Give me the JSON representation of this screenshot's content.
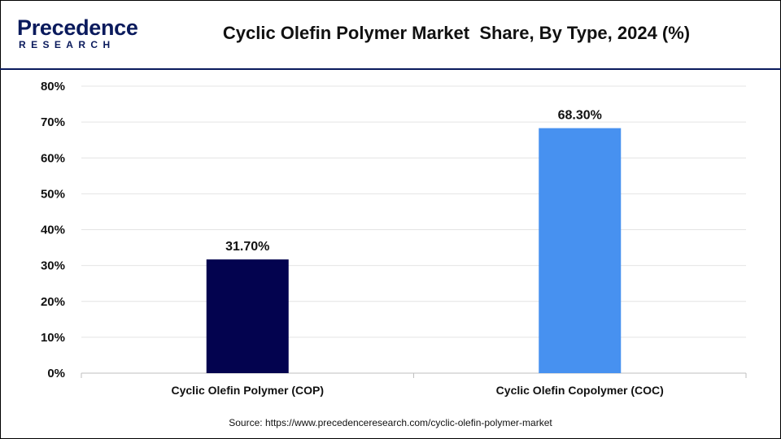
{
  "header": {
    "logo_word": "Precedence",
    "logo_sub": "RESEARCH",
    "brand_color": "#0a1a5c"
  },
  "chart_data": {
    "type": "bar",
    "title": "Cyclic Olefin Polymer Market  Share, By Type, 2024 (%)",
    "categories": [
      "Cyclic Olefin Polymer (COP)",
      "Cyclic Olefin Copolymer (COC)"
    ],
    "values": [
      31.7,
      68.3
    ],
    "data_labels": [
      "31.70%",
      "68.30%"
    ],
    "bar_colors": [
      "#03034f",
      "#4791f0"
    ],
    "ylim": [
      0,
      80
    ],
    "yticks": [
      "0%",
      "10%",
      "20%",
      "30%",
      "40%",
      "50%",
      "60%",
      "70%",
      "80%"
    ],
    "xlabel": "",
    "ylabel": "",
    "grid": true
  },
  "footer": {
    "source": "Source: https://www.precedenceresearch.com/cyclic-olefin-polymer-market"
  }
}
